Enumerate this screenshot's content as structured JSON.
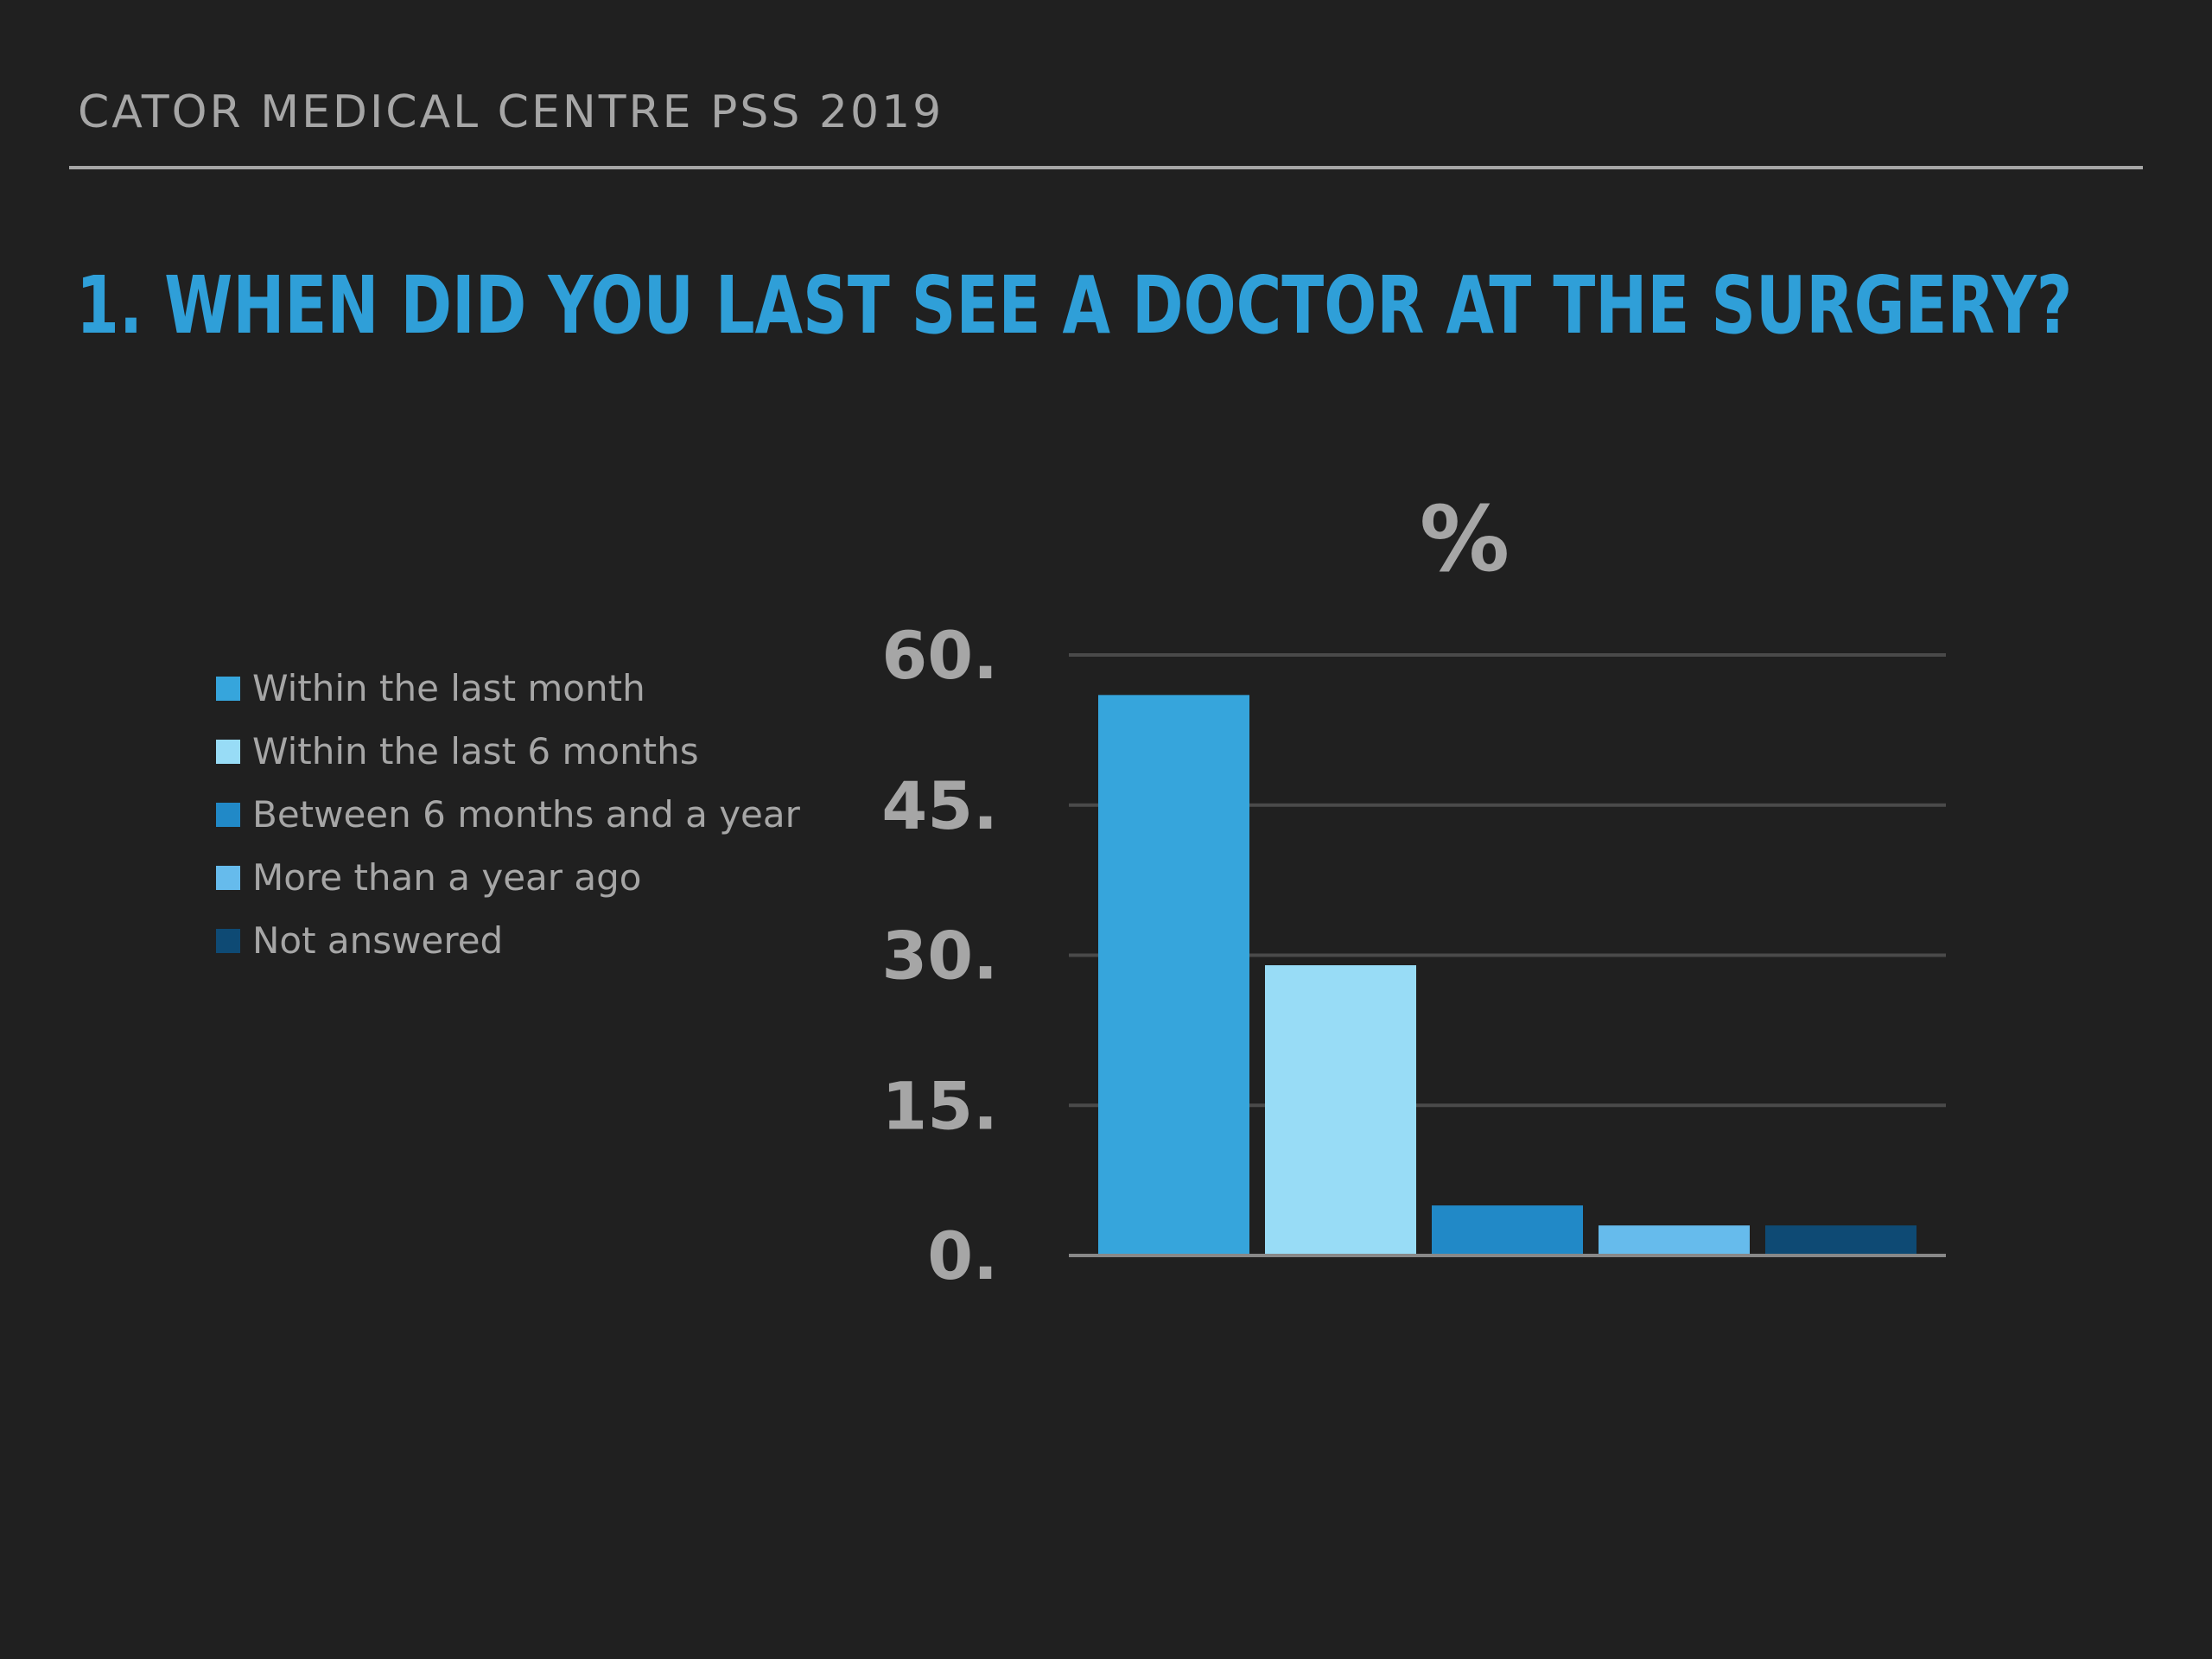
{
  "header": {
    "title": "CATOR MEDICAL CENTRE PSS 2019"
  },
  "question": {
    "text": "1. WHEN DID YOU LAST SEE A DOCTOR AT THE SURGERY?"
  },
  "colors": {
    "background": "#202020",
    "text": "#a6a6a6",
    "accent": "#2f9fd8",
    "gridline": "#4a4a4a",
    "baseline": "#888888"
  },
  "chart_data": {
    "type": "bar",
    "title": "%",
    "xlabel": "",
    "ylabel": "",
    "ylim": [
      0,
      60
    ],
    "yticks": [
      0,
      15,
      30,
      45,
      60
    ],
    "ytick_labels": [
      "0.",
      "15.",
      "30.",
      "45.",
      "60."
    ],
    "grid": true,
    "legend_position": "left",
    "series": [
      {
        "name": "Within the last month",
        "value": 56,
        "color": "#36a5dc"
      },
      {
        "name": "Within the last 6 months",
        "value": 29,
        "color": "#98dcf6"
      },
      {
        "name": "Between 6 months and a year",
        "value": 5,
        "color": "#2189c7"
      },
      {
        "name": "More than a year ago",
        "value": 3,
        "color": "#66bbec"
      },
      {
        "name": "Not answered",
        "value": 3,
        "color": "#0e4a74"
      }
    ]
  }
}
